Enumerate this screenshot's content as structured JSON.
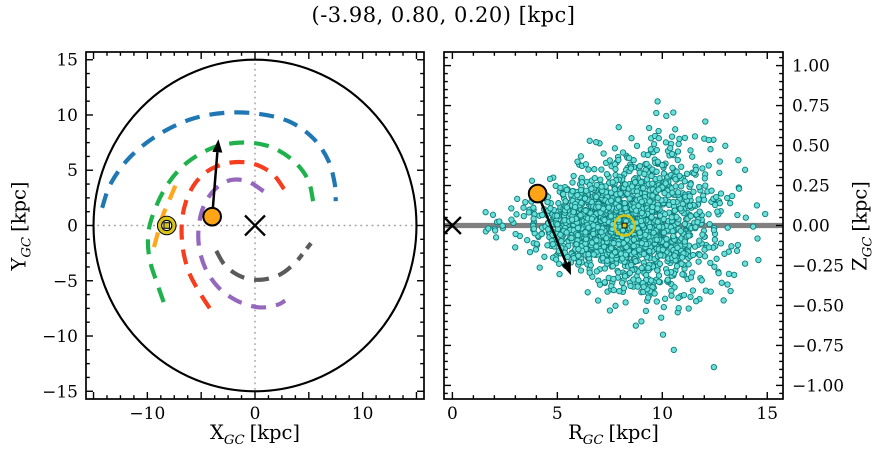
{
  "title": "(-3.98, 0.80, 0.20) [kpc]",
  "colors": {
    "background": "#ffffff",
    "frame": "#000000",
    "crosshair_dotted": "#a0a0a0",
    "disk_outline": "#000000",
    "midplane_gray": "#808080",
    "scatter_fill": "#68dfd9",
    "scatter_edge": "#0d7c7a",
    "sun_yellow": "#d9c412",
    "target_orange": "#ffa417",
    "arrow_black": "#000000"
  },
  "chart_data": [
    {
      "id": "galactic-plane-map",
      "type": "line",
      "xlabel": {
        "base": "X",
        "sub": "GC",
        "unit": "[kpc]"
      },
      "ylabel": {
        "base": "Y",
        "sub": "GC",
        "unit": "[kpc]"
      },
      "xlim": [
        -15.7,
        15.7
      ],
      "ylim": [
        -15.7,
        15.7
      ],
      "xticks": {
        "major_step": 5,
        "minor_step": 1.25,
        "label_values": [
          -10,
          0,
          10
        ],
        "labels": [
          "−10",
          "0",
          "10"
        ]
      },
      "yticks": {
        "major_step": 5,
        "minor_step": 1.25,
        "label_values": [
          -15,
          -10,
          -5,
          0,
          5,
          10,
          15
        ],
        "labels": [
          "−15",
          "−10",
          "−5",
          "0",
          "5",
          "10",
          "15"
        ]
      },
      "grid": "dotted crosshair at x=0 and y=0",
      "disk_outline_radius_kpc": 15,
      "galactic_center": [
        0,
        0
      ],
      "sun_position": [
        -8.2,
        0
      ],
      "target_position": [
        -3.98,
        0.8
      ],
      "target_arrow_end": [
        -3.4,
        7.8
      ],
      "spiral_arms": [
        {
          "name": "arm-blue",
          "color": "#1f77b4",
          "points": [
            [
              -14.2,
              1.6
            ],
            [
              -13.4,
              3.8
            ],
            [
              -11.6,
              6.2
            ],
            [
              -9.0,
              8.2
            ],
            [
              -6.0,
              9.6
            ],
            [
              -2.8,
              10.2
            ],
            [
              0.4,
              10.1
            ],
            [
              3.2,
              9.4
            ],
            [
              5.4,
              7.9
            ],
            [
              6.8,
              5.9
            ],
            [
              7.4,
              3.8
            ],
            [
              7.5,
              2.2
            ]
          ]
        },
        {
          "name": "arm-green",
          "color": "#1fb24c",
          "points": [
            [
              5.4,
              2.2
            ],
            [
              4.9,
              4.2
            ],
            [
              3.4,
              6.0
            ],
            [
              1.2,
              7.2
            ],
            [
              -1.4,
              7.5
            ],
            [
              -4.0,
              7.0
            ],
            [
              -6.3,
              5.7
            ],
            [
              -8.0,
              3.9
            ],
            [
              -9.2,
              1.7
            ],
            [
              -9.9,
              -0.6
            ],
            [
              -9.8,
              -3.0
            ],
            [
              -9.0,
              -5.5
            ],
            [
              -8.2,
              -7.7
            ]
          ]
        },
        {
          "name": "arm-red",
          "color": "#f63d1e",
          "points": [
            [
              2.7,
              3.3
            ],
            [
              1.6,
              4.7
            ],
            [
              -0.2,
              5.6
            ],
            [
              -2.2,
              5.7
            ],
            [
              -4.1,
              5.1
            ],
            [
              -5.5,
              3.9
            ],
            [
              -6.4,
              2.2
            ],
            [
              -6.8,
              0.2
            ],
            [
              -6.7,
              -2.1
            ],
            [
              -6.1,
              -4.3
            ],
            [
              -5.0,
              -6.3
            ],
            [
              -3.7,
              -8.2
            ]
          ]
        },
        {
          "name": "arm-purple",
          "color": "#9568bd",
          "points": [
            [
              0.8,
              3.1
            ],
            [
              -0.7,
              4.0
            ],
            [
              -2.3,
              4.1
            ],
            [
              -3.7,
              3.3
            ],
            [
              -4.7,
              1.9
            ],
            [
              -5.2,
              0.1
            ],
            [
              -5.2,
              -1.9
            ],
            [
              -4.6,
              -3.9
            ],
            [
              -3.4,
              -5.6
            ],
            [
              -1.7,
              -6.8
            ],
            [
              0.3,
              -7.4
            ],
            [
              2.0,
              -7.2
            ],
            [
              2.8,
              -6.8
            ]
          ]
        },
        {
          "name": "arm-gray",
          "color": "#5a5a5a",
          "points": [
            [
              -3.6,
              -2.3
            ],
            [
              -2.7,
              -3.7
            ],
            [
              -1.1,
              -4.7
            ],
            [
              0.7,
              -4.9
            ],
            [
              2.4,
              -4.4
            ],
            [
              3.7,
              -3.4
            ],
            [
              4.4,
              -2.6
            ]
          ]
        },
        {
          "name": "arm-gray-tip",
          "color": "#5a5a5a",
          "points": [
            [
              4.8,
              -2.1
            ],
            [
              5.2,
              -1.6
            ]
          ]
        },
        {
          "name": "arm-orange",
          "color": "#ffa71c",
          "points": [
            [
              -7.4,
              3.6
            ],
            [
              -8.0,
              2.2
            ],
            [
              -8.6,
              0.8
            ],
            [
              -9.0,
              -0.6
            ],
            [
              -9.4,
              -2.0
            ]
          ]
        }
      ]
    },
    {
      "id": "r-z-distribution",
      "type": "scatter",
      "xlabel": {
        "base": "R",
        "sub": "GC",
        "unit": "[kpc]"
      },
      "ylabel": {
        "base": "Z",
        "sub": "GC",
        "unit": "[kpc]"
      },
      "xlim": [
        -0.4,
        15.75
      ],
      "ylim": [
        -1.085,
        1.085
      ],
      "xticks": {
        "major_step": 5,
        "minor_step": 1,
        "label_values": [
          0,
          5,
          10,
          15
        ],
        "labels": [
          "0",
          "5",
          "10",
          "15"
        ]
      },
      "yticks": {
        "major_step": 0.25,
        "minor_step": 0.05,
        "label_values": [
          1,
          0.75,
          0.5,
          0.25,
          0,
          -0.25,
          -0.5,
          -0.75,
          -1
        ],
        "labels": [
          "1.00",
          "0.75",
          "0.50",
          "0.25",
          "0.00",
          "−0.25",
          "−0.50",
          "−0.75",
          "−1.00"
        ]
      },
      "midplane_line_z": 0,
      "galactic_center": [
        0,
        0
      ],
      "sun_position": [
        8.2,
        0
      ],
      "target_position": [
        4.06,
        0.2
      ],
      "target_arrow_end": [
        5.65,
        -0.31
      ],
      "scatter_cloud": {
        "seed": 7,
        "n": 1700,
        "r_mean": 8.4,
        "r_sigma": 2.15,
        "r_min": 1.5,
        "r_max": 15.55,
        "z_mean": 0.015,
        "z_sigma_base": 0.02,
        "z_sigma_slope": 0.021,
        "z_max": 1.07,
        "point_radius_px": 2.7,
        "summary": "dense star cloud centered near R=8 kpc, Z=0; vertical spread flares with R up to about +/-1 kpc"
      }
    }
  ]
}
